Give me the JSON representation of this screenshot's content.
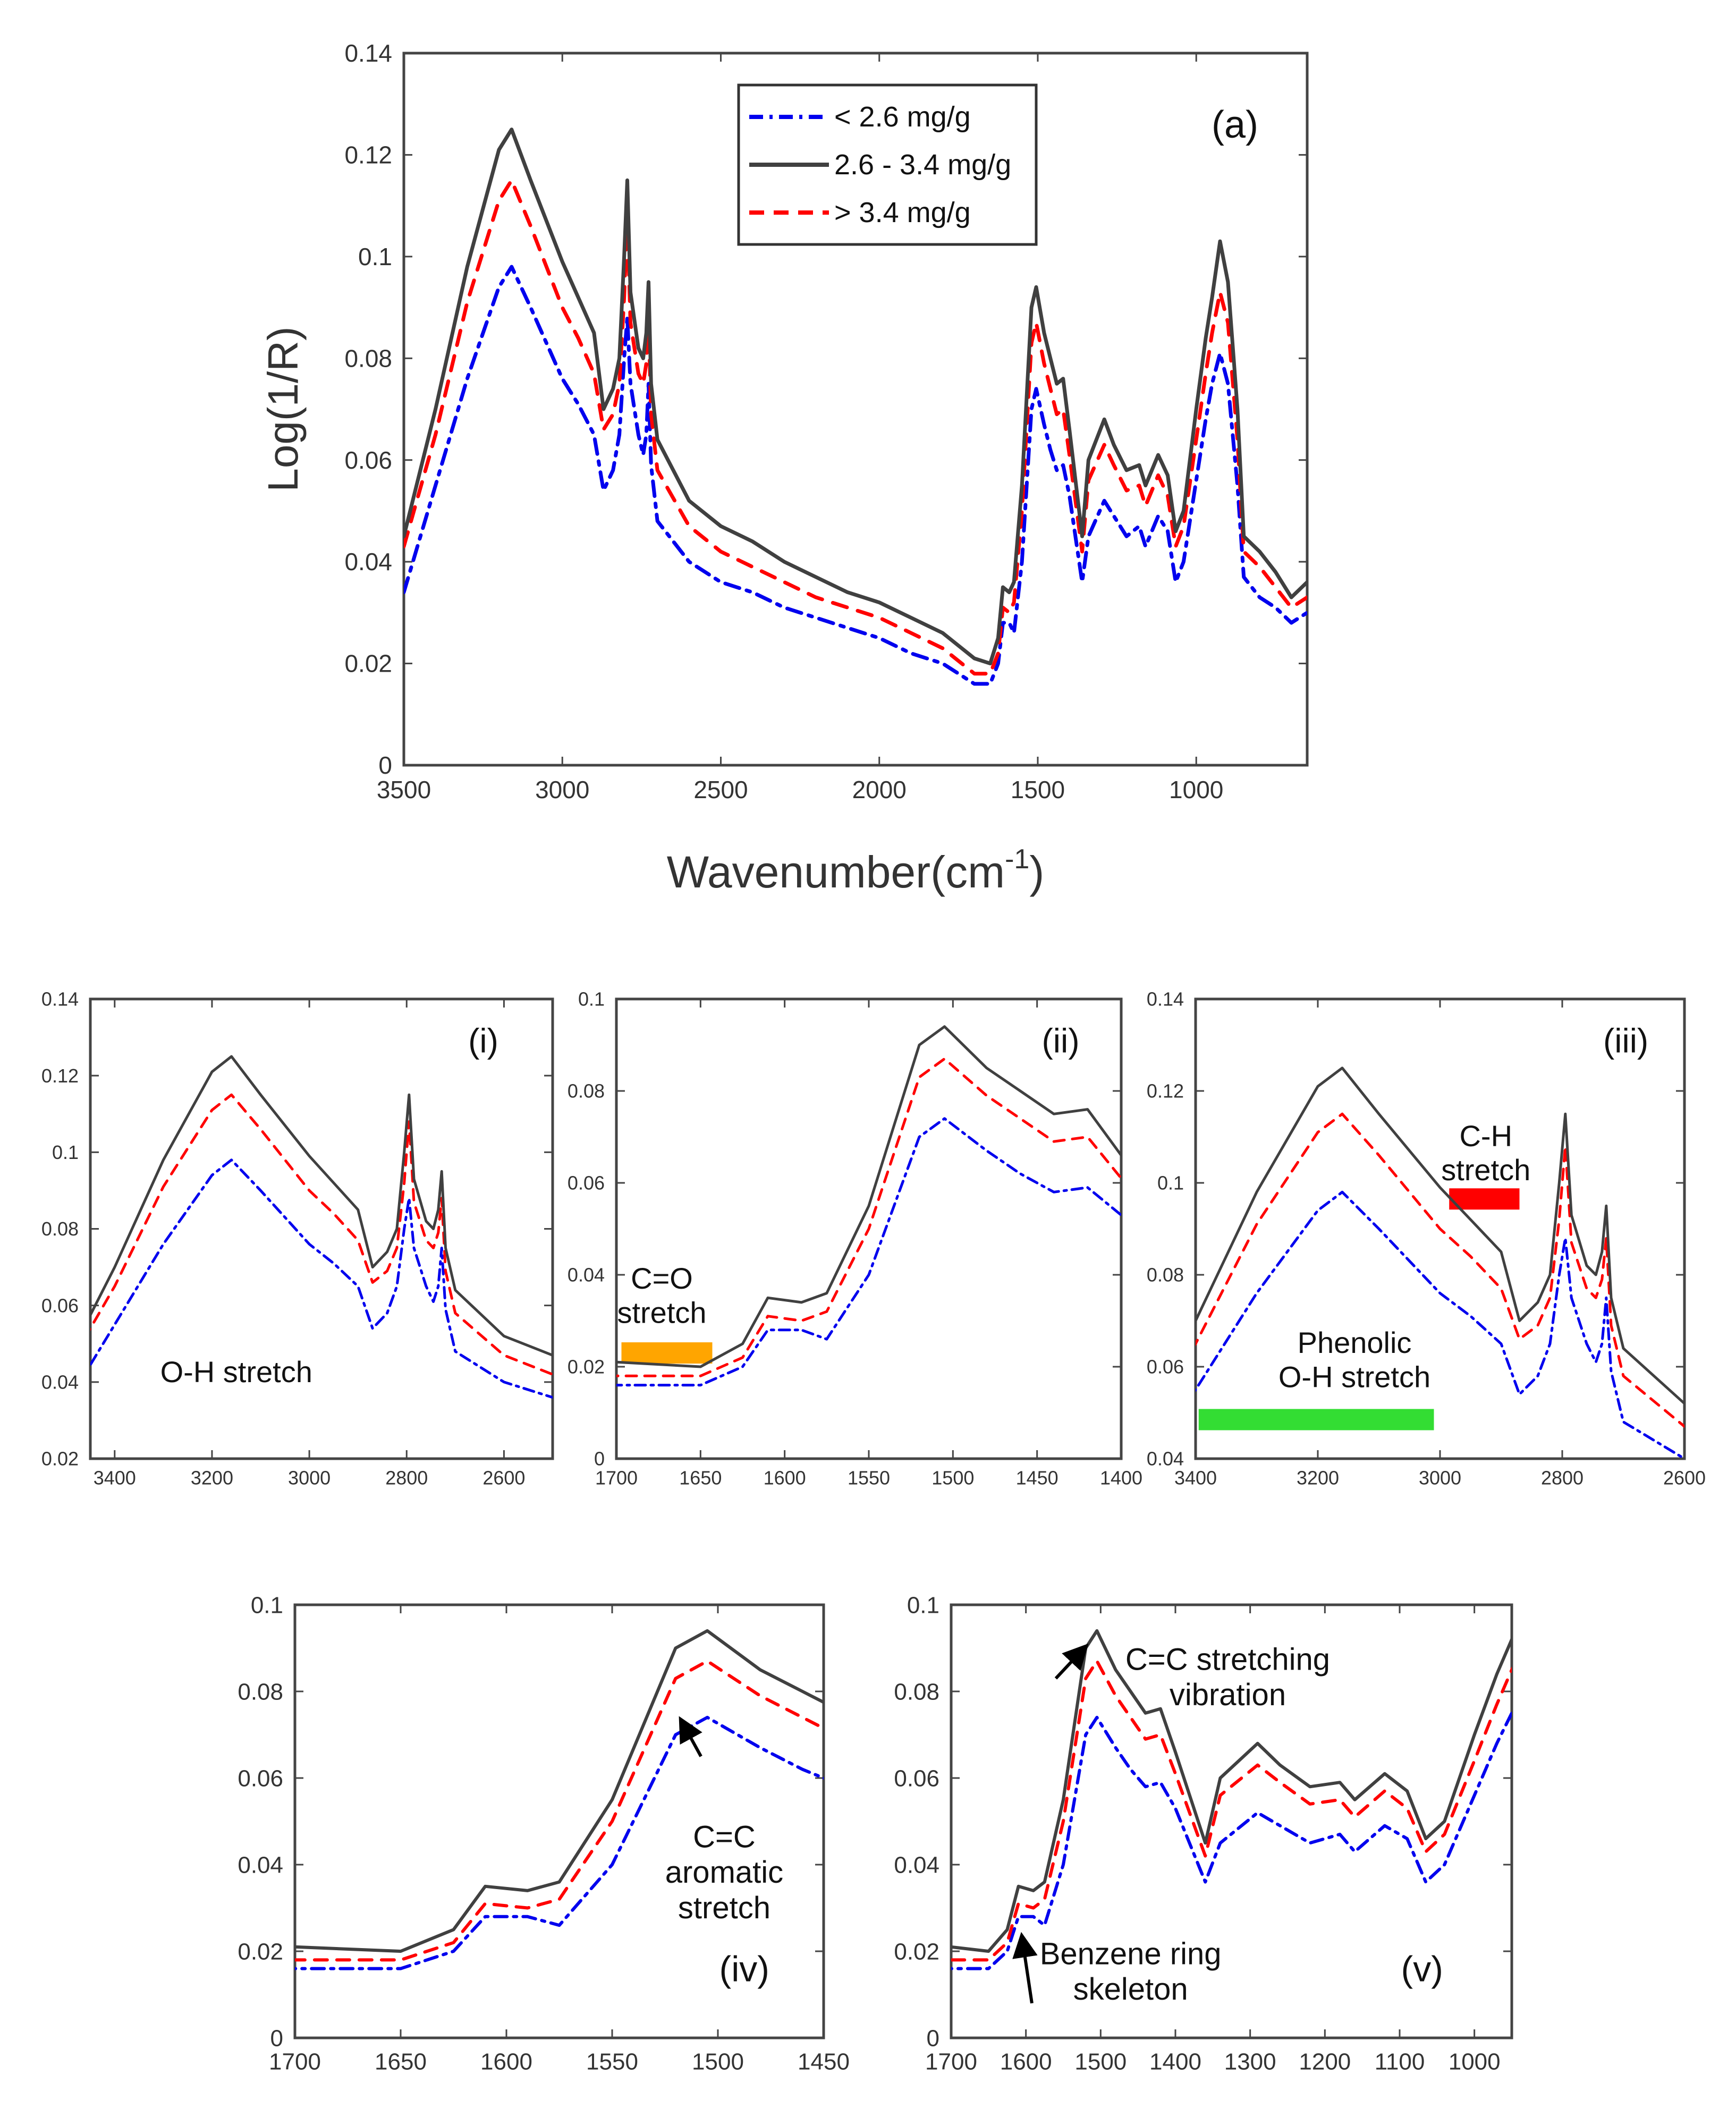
{
  "colors": {
    "low": "#0000ee",
    "mid": "#404040",
    "high": "#ff0000",
    "axis": "#444444",
    "co_bar": "#ffa500",
    "ch_bar": "#ff0000",
    "phenolic_bar": "#33dd33"
  },
  "chart_data": [
    {
      "id": "a",
      "type": "line",
      "panel_label": "(a)",
      "xlabel": "Wavenumber(cm",
      "xlabel_sup": "-1",
      "xlabel_end": ")",
      "ylabel": "Log(1/R)",
      "xlim": [
        3500,
        650
      ],
      "ylim": [
        0,
        0.14
      ],
      "xticks": [
        3500,
        3000,
        2500,
        2000,
        1500,
        1000
      ],
      "yticks": [
        0,
        0.02,
        0.04,
        0.06,
        0.08,
        0.1,
        0.12,
        0.14
      ],
      "legend": [
        {
          "key": "low",
          "label": "< 2.6 mg/g"
        },
        {
          "key": "mid",
          "label": "2.6 - 3.4 mg/g"
        },
        {
          "key": "high",
          "label": "> 3.4 mg/g"
        }
      ],
      "annotations": []
    },
    {
      "id": "i",
      "type": "line",
      "panel_label": "(i)",
      "xlim": [
        3450,
        2500
      ],
      "ylim": [
        0.02,
        0.14
      ],
      "xticks": [
        3400,
        3200,
        3000,
        2800,
        2600
      ],
      "yticks": [
        0.02,
        0.04,
        0.06,
        0.08,
        0.1,
        0.12,
        0.14
      ],
      "annotations": [
        {
          "lines": [
            "O-H stretch"
          ],
          "x": 3150,
          "y": 0.04
        }
      ]
    },
    {
      "id": "ii",
      "type": "line",
      "panel_label": "(ii)",
      "xlim": [
        1700,
        1400
      ],
      "ylim": [
        0,
        0.1
      ],
      "xticks": [
        1700,
        1650,
        1600,
        1550,
        1500,
        1450,
        1400
      ],
      "yticks": [
        0,
        0.02,
        0.04,
        0.06,
        0.08,
        0.1
      ],
      "annotations": [
        {
          "lines": [
            "C=O",
            "stretch"
          ],
          "x": 1673,
          "y": 0.037
        }
      ],
      "bars": [
        {
          "key": "co_bar",
          "x0": 1697,
          "x1": 1643,
          "y": 0.023
        }
      ]
    },
    {
      "id": "iii",
      "type": "line",
      "panel_label": "(iii)",
      "xlim": [
        3400,
        2600
      ],
      "ylim": [
        0.04,
        0.14
      ],
      "xticks": [
        3400,
        3200,
        3000,
        2800,
        2600
      ],
      "yticks": [
        0.04,
        0.06,
        0.08,
        0.1,
        0.12,
        0.14
      ],
      "annotations": [
        {
          "lines": [
            "C-H",
            "stretch"
          ],
          "x": 2925,
          "y": 0.108
        },
        {
          "lines": [
            "Phenolic",
            "O-H stretch"
          ],
          "x": 3140,
          "y": 0.063
        }
      ],
      "bars": [
        {
          "key": "ch_bar",
          "x0": 2985,
          "x1": 2870,
          "y": 0.0965
        },
        {
          "key": "phenolic_bar",
          "x0": 3395,
          "x1": 3010,
          "y": 0.0485
        }
      ]
    },
    {
      "id": "iv",
      "type": "line",
      "panel_label": "(iv)",
      "xlim": [
        1700,
        1450
      ],
      "ylim": [
        0,
        0.1
      ],
      "xticks": [
        1700,
        1650,
        1600,
        1550,
        1500,
        1450
      ],
      "yticks": [
        0,
        0.02,
        0.04,
        0.06,
        0.08,
        0.1
      ],
      "annotations": [
        {
          "lines": [
            "C=C",
            "aromatic",
            "stretch"
          ],
          "x": 1497,
          "y": 0.044
        }
      ],
      "arrows": [
        {
          "x0": 1508,
          "y0": 0.065,
          "x1": 1517,
          "y1": 0.073
        }
      ]
    },
    {
      "id": "v",
      "type": "line",
      "panel_label": "(v)",
      "xlim": [
        1700,
        950
      ],
      "ylim": [
        0,
        0.1
      ],
      "xticks": [
        1700,
        1600,
        1500,
        1400,
        1300,
        1200,
        1100,
        1000
      ],
      "yticks": [
        0,
        0.02,
        0.04,
        0.06,
        0.08,
        0.1
      ],
      "annotations": [
        {
          "lines": [
            "C=C stretching",
            "vibration"
          ],
          "x": 1330,
          "y": 0.085
        },
        {
          "lines": [
            "Benzene ring",
            "skeleton"
          ],
          "x": 1460,
          "y": 0.017
        }
      ],
      "arrows": [
        {
          "x0": 1560,
          "y0": 0.083,
          "x1": 1522,
          "y1": 0.09
        },
        {
          "x0": 1592,
          "y0": 0.008,
          "x1": 1605,
          "y1": 0.023
        }
      ]
    }
  ],
  "spectra": {
    "mid": [
      [
        3500,
        0.045
      ],
      [
        3400,
        0.07
      ],
      [
        3300,
        0.098
      ],
      [
        3200,
        0.121
      ],
      [
        3160,
        0.125
      ],
      [
        3100,
        0.115
      ],
      [
        3000,
        0.099
      ],
      [
        2950,
        0.092
      ],
      [
        2900,
        0.085
      ],
      [
        2870,
        0.07
      ],
      [
        2840,
        0.074
      ],
      [
        2820,
        0.08
      ],
      [
        2805,
        0.1
      ],
      [
        2795,
        0.115
      ],
      [
        2785,
        0.093
      ],
      [
        2760,
        0.082
      ],
      [
        2745,
        0.08
      ],
      [
        2735,
        0.085
      ],
      [
        2728,
        0.095
      ],
      [
        2720,
        0.075
      ],
      [
        2700,
        0.064
      ],
      [
        2600,
        0.052
      ],
      [
        2500,
        0.047
      ],
      [
        2400,
        0.044
      ],
      [
        2300,
        0.04
      ],
      [
        2200,
        0.037
      ],
      [
        2100,
        0.034
      ],
      [
        2000,
        0.032
      ],
      [
        1900,
        0.029
      ],
      [
        1800,
        0.026
      ],
      [
        1700,
        0.021
      ],
      [
        1650,
        0.02
      ],
      [
        1625,
        0.025
      ],
      [
        1610,
        0.035
      ],
      [
        1590,
        0.034
      ],
      [
        1575,
        0.036
      ],
      [
        1550,
        0.055
      ],
      [
        1520,
        0.09
      ],
      [
        1505,
        0.094
      ],
      [
        1480,
        0.085
      ],
      [
        1460,
        0.08
      ],
      [
        1440,
        0.075
      ],
      [
        1420,
        0.076
      ],
      [
        1400,
        0.066
      ],
      [
        1360,
        0.045
      ],
      [
        1340,
        0.06
      ],
      [
        1290,
        0.068
      ],
      [
        1260,
        0.063
      ],
      [
        1220,
        0.058
      ],
      [
        1180,
        0.059
      ],
      [
        1160,
        0.055
      ],
      [
        1120,
        0.061
      ],
      [
        1090,
        0.057
      ],
      [
        1065,
        0.046
      ],
      [
        1040,
        0.05
      ],
      [
        1000,
        0.07
      ],
      [
        970,
        0.084
      ],
      [
        950,
        0.092
      ],
      [
        925,
        0.103
      ],
      [
        900,
        0.095
      ],
      [
        870,
        0.07
      ],
      [
        850,
        0.045
      ],
      [
        800,
        0.042
      ],
      [
        750,
        0.038
      ],
      [
        700,
        0.033
      ],
      [
        650,
        0.036
      ]
    ],
    "high": [
      [
        3500,
        0.043
      ],
      [
        3400,
        0.065
      ],
      [
        3300,
        0.091
      ],
      [
        3200,
        0.111
      ],
      [
        3160,
        0.115
      ],
      [
        3100,
        0.106
      ],
      [
        3000,
        0.09
      ],
      [
        2950,
        0.084
      ],
      [
        2900,
        0.077
      ],
      [
        2870,
        0.066
      ],
      [
        2840,
        0.069
      ],
      [
        2820,
        0.075
      ],
      [
        2805,
        0.092
      ],
      [
        2795,
        0.108
      ],
      [
        2785,
        0.087
      ],
      [
        2760,
        0.077
      ],
      [
        2745,
        0.075
      ],
      [
        2735,
        0.079
      ],
      [
        2728,
        0.088
      ],
      [
        2720,
        0.069
      ],
      [
        2700,
        0.058
      ],
      [
        2600,
        0.047
      ],
      [
        2500,
        0.042
      ],
      [
        2400,
        0.039
      ],
      [
        2300,
        0.036
      ],
      [
        2200,
        0.033
      ],
      [
        2100,
        0.031
      ],
      [
        2000,
        0.029
      ],
      [
        1900,
        0.026
      ],
      [
        1800,
        0.023
      ],
      [
        1700,
        0.018
      ],
      [
        1650,
        0.018
      ],
      [
        1625,
        0.022
      ],
      [
        1610,
        0.031
      ],
      [
        1590,
        0.03
      ],
      [
        1575,
        0.032
      ],
      [
        1550,
        0.05
      ],
      [
        1520,
        0.083
      ],
      [
        1505,
        0.087
      ],
      [
        1480,
        0.079
      ],
      [
        1460,
        0.074
      ],
      [
        1440,
        0.069
      ],
      [
        1420,
        0.07
      ],
      [
        1400,
        0.061
      ],
      [
        1360,
        0.042
      ],
      [
        1340,
        0.056
      ],
      [
        1290,
        0.063
      ],
      [
        1260,
        0.059
      ],
      [
        1220,
        0.054
      ],
      [
        1180,
        0.055
      ],
      [
        1160,
        0.051
      ],
      [
        1120,
        0.057
      ],
      [
        1090,
        0.053
      ],
      [
        1065,
        0.043
      ],
      [
        1040,
        0.047
      ],
      [
        1000,
        0.064
      ],
      [
        970,
        0.077
      ],
      [
        950,
        0.085
      ],
      [
        925,
        0.093
      ],
      [
        900,
        0.087
      ],
      [
        870,
        0.064
      ],
      [
        850,
        0.042
      ],
      [
        800,
        0.039
      ],
      [
        750,
        0.035
      ],
      [
        700,
        0.031
      ],
      [
        650,
        0.033
      ]
    ],
    "low": [
      [
        3500,
        0.034
      ],
      [
        3400,
        0.055
      ],
      [
        3300,
        0.076
      ],
      [
        3200,
        0.094
      ],
      [
        3160,
        0.098
      ],
      [
        3100,
        0.09
      ],
      [
        3000,
        0.076
      ],
      [
        2950,
        0.071
      ],
      [
        2900,
        0.065
      ],
      [
        2870,
        0.054
      ],
      [
        2840,
        0.058
      ],
      [
        2820,
        0.065
      ],
      [
        2805,
        0.08
      ],
      [
        2795,
        0.088
      ],
      [
        2785,
        0.075
      ],
      [
        2760,
        0.065
      ],
      [
        2745,
        0.061
      ],
      [
        2735,
        0.065
      ],
      [
        2728,
        0.075
      ],
      [
        2720,
        0.059
      ],
      [
        2700,
        0.048
      ],
      [
        2600,
        0.04
      ],
      [
        2500,
        0.036
      ],
      [
        2400,
        0.034
      ],
      [
        2300,
        0.031
      ],
      [
        2200,
        0.029
      ],
      [
        2100,
        0.027
      ],
      [
        2000,
        0.025
      ],
      [
        1900,
        0.022
      ],
      [
        1800,
        0.02
      ],
      [
        1700,
        0.016
      ],
      [
        1650,
        0.016
      ],
      [
        1625,
        0.02
      ],
      [
        1610,
        0.028
      ],
      [
        1590,
        0.028
      ],
      [
        1575,
        0.026
      ],
      [
        1550,
        0.04
      ],
      [
        1520,
        0.07
      ],
      [
        1505,
        0.074
      ],
      [
        1480,
        0.067
      ],
      [
        1460,
        0.062
      ],
      [
        1440,
        0.058
      ],
      [
        1420,
        0.059
      ],
      [
        1400,
        0.053
      ],
      [
        1360,
        0.036
      ],
      [
        1340,
        0.045
      ],
      [
        1290,
        0.052
      ],
      [
        1260,
        0.049
      ],
      [
        1220,
        0.045
      ],
      [
        1180,
        0.047
      ],
      [
        1160,
        0.043
      ],
      [
        1120,
        0.049
      ],
      [
        1090,
        0.046
      ],
      [
        1065,
        0.036
      ],
      [
        1040,
        0.04
      ],
      [
        1000,
        0.056
      ],
      [
        970,
        0.068
      ],
      [
        950,
        0.075
      ],
      [
        925,
        0.081
      ],
      [
        900,
        0.075
      ],
      [
        870,
        0.055
      ],
      [
        850,
        0.037
      ],
      [
        800,
        0.033
      ],
      [
        750,
        0.031
      ],
      [
        700,
        0.028
      ],
      [
        650,
        0.03
      ]
    ]
  }
}
